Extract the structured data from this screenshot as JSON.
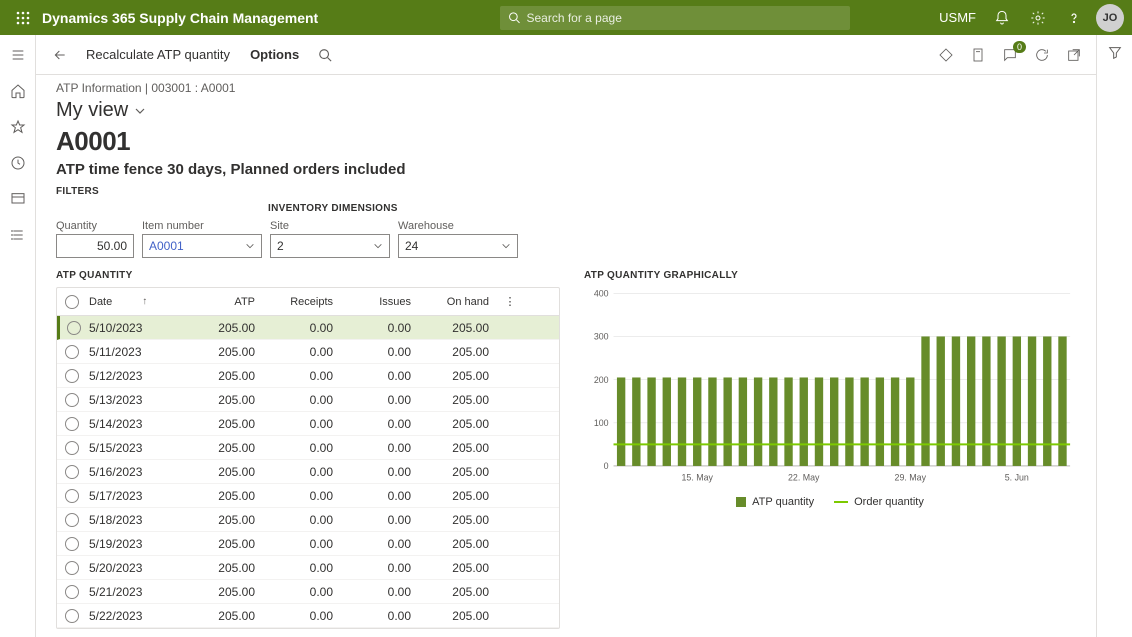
{
  "app_title": "Dynamics 365 Supply Chain Management",
  "search_placeholder": "Search for a page",
  "company": "USMF",
  "avatar": "JO",
  "action_bar": {
    "recalc": "Recalculate ATP quantity",
    "options": "Options",
    "badge_count": "0"
  },
  "breadcrumb": "ATP Information   |   003001 : A0001",
  "view_label": "My view",
  "page_title": "A0001",
  "subtitle": "ATP time fence 30 days, Planned orders included",
  "filters_label": "FILTERS",
  "inv_label": "INVENTORY DIMENSIONS",
  "fields": {
    "quantity_label": "Quantity",
    "quantity_value": "50.00",
    "item_label": "Item number",
    "item_value": "A0001",
    "site_label": "Site",
    "site_value": "2",
    "warehouse_label": "Warehouse",
    "warehouse_value": "24"
  },
  "grid_label": "ATP QUANTITY",
  "chart_label": "ATP QUANTITY GRAPHICALLY",
  "grid": {
    "columns": {
      "date": "Date",
      "atp": "ATP",
      "receipts": "Receipts",
      "issues": "Issues",
      "onhand": "On hand"
    },
    "rows": [
      {
        "date": "5/10/2023",
        "atp": "205.00",
        "receipts": "0.00",
        "issues": "0.00",
        "onhand": "205.00",
        "selected": true
      },
      {
        "date": "5/11/2023",
        "atp": "205.00",
        "receipts": "0.00",
        "issues": "0.00",
        "onhand": "205.00"
      },
      {
        "date": "5/12/2023",
        "atp": "205.00",
        "receipts": "0.00",
        "issues": "0.00",
        "onhand": "205.00"
      },
      {
        "date": "5/13/2023",
        "atp": "205.00",
        "receipts": "0.00",
        "issues": "0.00",
        "onhand": "205.00"
      },
      {
        "date": "5/14/2023",
        "atp": "205.00",
        "receipts": "0.00",
        "issues": "0.00",
        "onhand": "205.00"
      },
      {
        "date": "5/15/2023",
        "atp": "205.00",
        "receipts": "0.00",
        "issues": "0.00",
        "onhand": "205.00"
      },
      {
        "date": "5/16/2023",
        "atp": "205.00",
        "receipts": "0.00",
        "issues": "0.00",
        "onhand": "205.00"
      },
      {
        "date": "5/17/2023",
        "atp": "205.00",
        "receipts": "0.00",
        "issues": "0.00",
        "onhand": "205.00"
      },
      {
        "date": "5/18/2023",
        "atp": "205.00",
        "receipts": "0.00",
        "issues": "0.00",
        "onhand": "205.00"
      },
      {
        "date": "5/19/2023",
        "atp": "205.00",
        "receipts": "0.00",
        "issues": "0.00",
        "onhand": "205.00"
      },
      {
        "date": "5/20/2023",
        "atp": "205.00",
        "receipts": "0.00",
        "issues": "0.00",
        "onhand": "205.00"
      },
      {
        "date": "5/21/2023",
        "atp": "205.00",
        "receipts": "0.00",
        "issues": "0.00",
        "onhand": "205.00"
      },
      {
        "date": "5/22/2023",
        "atp": "205.00",
        "receipts": "0.00",
        "issues": "0.00",
        "onhand": "205.00"
      }
    ]
  },
  "chart": {
    "type": "bar+line",
    "bar_color": "#678c2a",
    "line_color": "#7cc900",
    "grid_color": "#e0e0e0",
    "background_color": "#ffffff",
    "ylim": [
      0,
      400
    ],
    "ytick_step": 100,
    "yticks": [
      "0",
      "100",
      "200",
      "300",
      "400"
    ],
    "xticks": [
      "15. May",
      "22. May",
      "29. May",
      "5. Jun"
    ],
    "xtick_positions": [
      5,
      12,
      19,
      26
    ],
    "bar_width": 0.55,
    "n_bars": 30,
    "bars": [
      205,
      205,
      205,
      205,
      205,
      205,
      205,
      205,
      205,
      205,
      205,
      205,
      205,
      205,
      205,
      205,
      205,
      205,
      205,
      205,
      300,
      300,
      300,
      300,
      300,
      300,
      300,
      300,
      300,
      300
    ],
    "line_value": 50,
    "legend": {
      "bar": "ATP quantity",
      "line": "Order quantity"
    },
    "axis_fontsize": 10,
    "axis_color": "#605e5c"
  }
}
